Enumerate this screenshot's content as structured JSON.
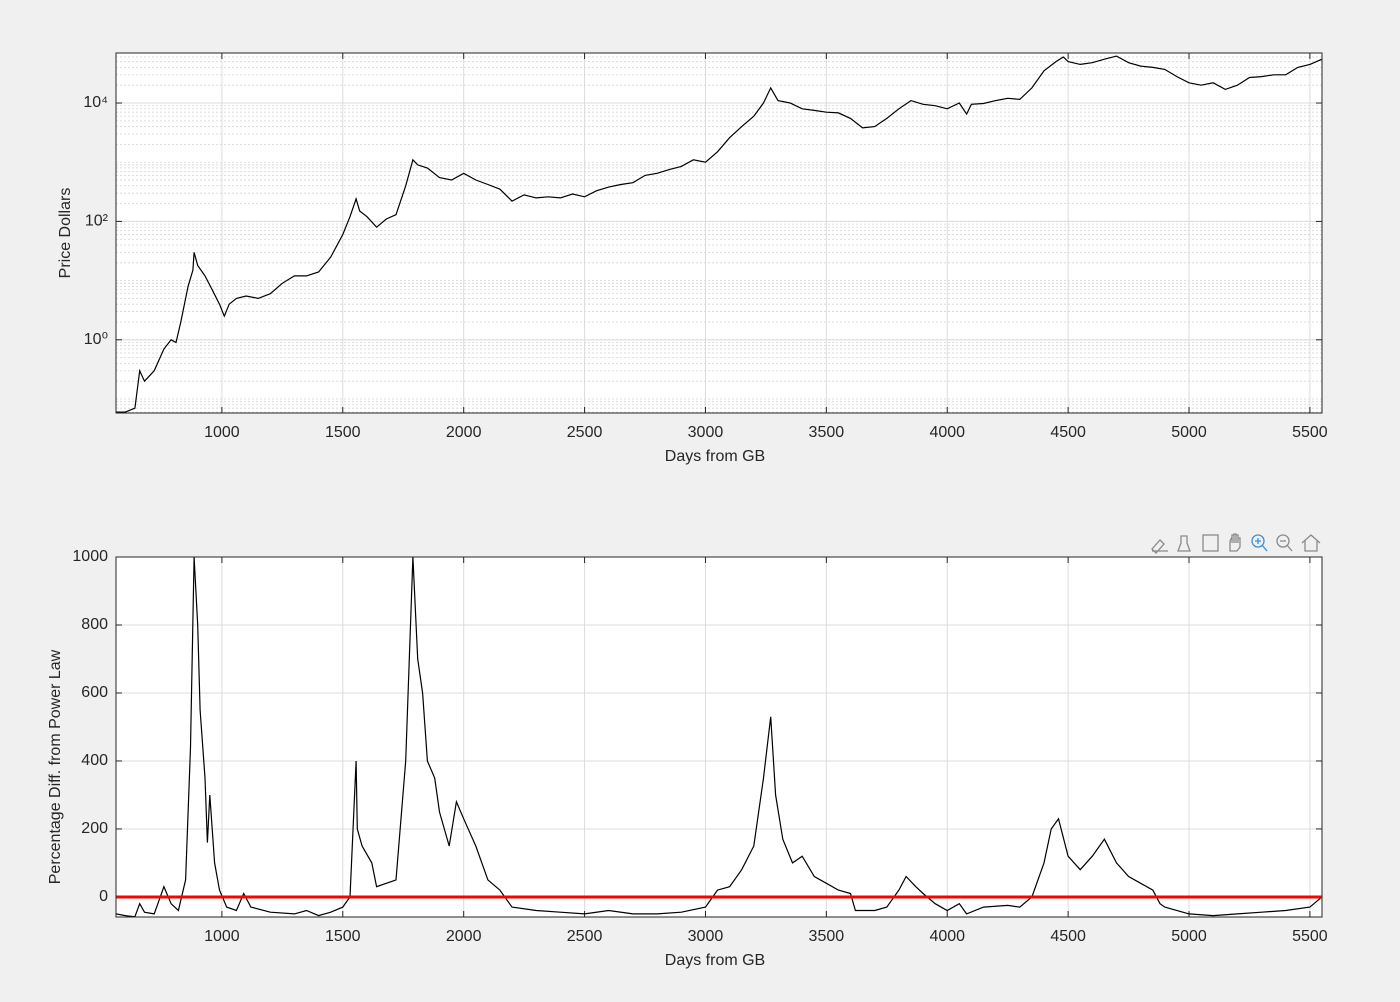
{
  "chart_data": [
    {
      "type": "line",
      "xlabel": "Days from GB",
      "ylabel": "Price Dollars",
      "log_y": true,
      "grid": true,
      "minor_grid": true,
      "xlim": [
        562,
        5550
      ],
      "xticks": [
        1000,
        1500,
        2000,
        2500,
        3000,
        3500,
        4000,
        4500,
        5000,
        5500
      ],
      "ylim": [
        0.058,
        70000
      ],
      "yticks": [
        {
          "value": 1,
          "label": "10⁰"
        },
        {
          "value": 100,
          "label": "10²"
        },
        {
          "value": 10000,
          "label": "10⁴"
        }
      ],
      "x": [
        562,
        600,
        640,
        660,
        680,
        720,
        760,
        790,
        810,
        830,
        860,
        880,
        885,
        900,
        930,
        960,
        990,
        1010,
        1030,
        1060,
        1100,
        1150,
        1200,
        1250,
        1300,
        1350,
        1400,
        1450,
        1500,
        1530,
        1555,
        1570,
        1600,
        1640,
        1680,
        1720,
        1760,
        1790,
        1810,
        1850,
        1900,
        1950,
        2000,
        2050,
        2100,
        2150,
        2200,
        2250,
        2300,
        2350,
        2400,
        2450,
        2500,
        2550,
        2600,
        2650,
        2700,
        2750,
        2800,
        2850,
        2900,
        2950,
        3000,
        3050,
        3100,
        3150,
        3200,
        3240,
        3270,
        3300,
        3350,
        3400,
        3450,
        3500,
        3550,
        3600,
        3650,
        3700,
        3750,
        3800,
        3850,
        3900,
        3950,
        4000,
        4050,
        4080,
        4100,
        4150,
        4200,
        4250,
        4300,
        4350,
        4400,
        4450,
        4480,
        4500,
        4550,
        4600,
        4650,
        4700,
        4750,
        4800,
        4850,
        4900,
        4950,
        5000,
        5050,
        5100,
        5150,
        5200,
        5250,
        5300,
        5350,
        5400,
        5450,
        5500,
        5550
      ],
      "series": [
        {
          "color": "#000000",
          "values": [
            0.06,
            0.06,
            0.07,
            0.3,
            0.2,
            0.3,
            0.7,
            1.0,
            0.9,
            2,
            8,
            15,
            30,
            18,
            12,
            7,
            4,
            2.5,
            4,
            5,
            5.5,
            5,
            6,
            9,
            12,
            12,
            14,
            25,
            60,
            120,
            240,
            150,
            120,
            80,
            110,
            130,
            400,
            1100,
            900,
            800,
            550,
            500,
            650,
            500,
            420,
            350,
            220,
            280,
            250,
            260,
            250,
            290,
            260,
            330,
            380,
            420,
            450,
            600,
            650,
            750,
            850,
            1100,
            1000,
            1500,
            2600,
            4000,
            6000,
            10000,
            18000,
            11000,
            10000,
            8000,
            7500,
            7000,
            6800,
            5500,
            3800,
            4000,
            5500,
            8000,
            11000,
            9500,
            9000,
            8000,
            10000,
            6500,
            9500,
            9800,
            11000,
            12000,
            11500,
            18000,
            35000,
            50000,
            60000,
            50000,
            45000,
            48000,
            55000,
            62000,
            48000,
            42000,
            40000,
            37000,
            28000,
            22000,
            20000,
            22000,
            17000,
            20000,
            27000,
            28000,
            30000,
            30000,
            40000,
            45000,
            55000
          ]
        }
      ]
    },
    {
      "type": "line",
      "xlabel": "Days from GB",
      "ylabel": "Percentage Diff. from Power Law",
      "grid": true,
      "xlim": [
        562,
        5550
      ],
      "xticks": [
        1000,
        1500,
        2000,
        2500,
        3000,
        3500,
        4000,
        4500,
        5000,
        5500
      ],
      "ylim": [
        -59,
        1000
      ],
      "yticks": [
        0,
        200,
        400,
        600,
        800,
        1000
      ],
      "reference_line": {
        "value": 0,
        "color": "#ff0000"
      },
      "x": [
        562,
        600,
        640,
        660,
        680,
        720,
        760,
        790,
        820,
        850,
        870,
        885,
        900,
        910,
        930,
        940,
        950,
        970,
        990,
        1020,
        1060,
        1090,
        1120,
        1200,
        1300,
        1350,
        1400,
        1450,
        1500,
        1530,
        1555,
        1560,
        1580,
        1620,
        1640,
        1680,
        1720,
        1760,
        1790,
        1810,
        1830,
        1850,
        1880,
        1900,
        1940,
        1970,
        2000,
        2050,
        2100,
        2150,
        2200,
        2300,
        2400,
        2500,
        2600,
        2700,
        2800,
        2900,
        3000,
        3050,
        3100,
        3150,
        3200,
        3240,
        3270,
        3290,
        3320,
        3360,
        3400,
        3450,
        3500,
        3550,
        3600,
        3620,
        3700,
        3750,
        3800,
        3830,
        3870,
        3900,
        3950,
        4000,
        4050,
        4080,
        4150,
        4250,
        4300,
        4350,
        4400,
        4430,
        4460,
        4500,
        4550,
        4600,
        4650,
        4700,
        4750,
        4800,
        4850,
        4880,
        4900,
        5000,
        5100,
        5200,
        5300,
        5400,
        5500,
        5550
      ],
      "series": [
        {
          "color": "#000000",
          "values": [
            -50,
            -55,
            -58,
            -20,
            -45,
            -50,
            30,
            -20,
            -40,
            50,
            440,
            1000,
            800,
            550,
            350,
            160,
            300,
            100,
            20,
            -30,
            -40,
            10,
            -30,
            -45,
            -50,
            -40,
            -55,
            -45,
            -30,
            0,
            400,
            200,
            150,
            100,
            30,
            40,
            50,
            400,
            1000,
            700,
            600,
            400,
            350,
            250,
            150,
            280,
            230,
            150,
            50,
            20,
            -30,
            -40,
            -45,
            -50,
            -40,
            -50,
            -50,
            -45,
            -30,
            20,
            30,
            80,
            150,
            350,
            530,
            300,
            170,
            100,
            120,
            60,
            40,
            20,
            10,
            -40,
            -40,
            -30,
            20,
            60,
            30,
            10,
            -20,
            -40,
            -20,
            -50,
            -30,
            -25,
            -30,
            0,
            100,
            200,
            230,
            120,
            80,
            120,
            170,
            100,
            60,
            40,
            20,
            -20,
            -30,
            -50,
            -55,
            -50,
            -45,
            -40,
            -30,
            0
          ]
        }
      ]
    }
  ]
}
